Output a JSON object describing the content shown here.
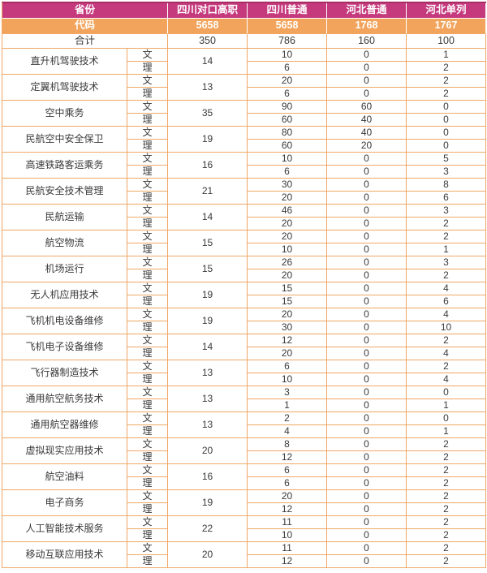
{
  "colors": {
    "header_pink": "#c43a7d",
    "header_orange": "#f2a45c",
    "border_orange": "#f0a767",
    "table_top_edge": "#a92c62",
    "header_text": "#ffffff",
    "body_text": "#3a3a3a"
  },
  "table": {
    "header": {
      "province_label": "省份",
      "code_label": "代码",
      "columns": [
        "四川对口高职",
        "四川普通",
        "河北普通",
        "河北单列"
      ],
      "codes": [
        "5658",
        "5658",
        "1768",
        "1767"
      ]
    },
    "total_row": {
      "label": "合计",
      "values": [
        "350",
        "786",
        "160",
        "100"
      ]
    },
    "track_labels": {
      "arts": "文",
      "science": "理"
    },
    "majors": [
      {
        "name": "直升机驾驶技术",
        "sichuan_duikou": "14",
        "arts": [
          "10",
          "0",
          "1"
        ],
        "science": [
          "6",
          "0",
          "2"
        ]
      },
      {
        "name": "定翼机驾驶技术",
        "sichuan_duikou": "13",
        "arts": [
          "20",
          "0",
          "2"
        ],
        "science": [
          "6",
          "0",
          "2"
        ]
      },
      {
        "name": "空中乘务",
        "sichuan_duikou": "35",
        "arts": [
          "90",
          "60",
          "0"
        ],
        "science": [
          "60",
          "40",
          "0"
        ]
      },
      {
        "name": "民航空中安全保卫",
        "sichuan_duikou": "19",
        "arts": [
          "80",
          "40",
          "0"
        ],
        "science": [
          "60",
          "20",
          "0"
        ]
      },
      {
        "name": "高速铁路客运乘务",
        "sichuan_duikou": "16",
        "arts": [
          "10",
          "0",
          "5"
        ],
        "science": [
          "6",
          "0",
          "3"
        ]
      },
      {
        "name": "民航安全技术管理",
        "sichuan_duikou": "21",
        "arts": [
          "30",
          "0",
          "8"
        ],
        "science": [
          "20",
          "0",
          "6"
        ]
      },
      {
        "name": "民航运输",
        "sichuan_duikou": "14",
        "arts": [
          "46",
          "0",
          "3"
        ],
        "science": [
          "20",
          "0",
          "2"
        ]
      },
      {
        "name": "航空物流",
        "sichuan_duikou": "15",
        "arts": [
          "20",
          "0",
          "2"
        ],
        "science": [
          "10",
          "0",
          "1"
        ]
      },
      {
        "name": "机场运行",
        "sichuan_duikou": "15",
        "arts": [
          "26",
          "0",
          "3"
        ],
        "science": [
          "20",
          "0",
          "2"
        ]
      },
      {
        "name": "无人机应用技术",
        "sichuan_duikou": "19",
        "arts": [
          "15",
          "0",
          "4"
        ],
        "science": [
          "15",
          "0",
          "6"
        ]
      },
      {
        "name": "飞机机电设备维修",
        "sichuan_duikou": "19",
        "arts": [
          "20",
          "0",
          "4"
        ],
        "science": [
          "30",
          "0",
          "10"
        ]
      },
      {
        "name": "飞机电子设备维修",
        "sichuan_duikou": "14",
        "arts": [
          "12",
          "0",
          "2"
        ],
        "science": [
          "20",
          "0",
          "4"
        ]
      },
      {
        "name": "飞行器制造技术",
        "sichuan_duikou": "13",
        "arts": [
          "6",
          "0",
          "2"
        ],
        "science": [
          "10",
          "0",
          "4"
        ]
      },
      {
        "name": "通用航空航务技术",
        "sichuan_duikou": "13",
        "arts": [
          "3",
          "0",
          "0"
        ],
        "science": [
          "1",
          "0",
          "1"
        ]
      },
      {
        "name": "通用航空器维修",
        "sichuan_duikou": "13",
        "arts": [
          "2",
          "0",
          "0"
        ],
        "science": [
          "4",
          "0",
          "1"
        ]
      },
      {
        "name": "虚拟现实应用技术",
        "sichuan_duikou": "20",
        "arts": [
          "8",
          "0",
          "2"
        ],
        "science": [
          "12",
          "0",
          "2"
        ]
      },
      {
        "name": "航空油料",
        "sichuan_duikou": "16",
        "arts": [
          "6",
          "0",
          "2"
        ],
        "science": [
          "6",
          "0",
          "2"
        ]
      },
      {
        "name": "电子商务",
        "sichuan_duikou": "19",
        "arts": [
          "20",
          "0",
          "2"
        ],
        "science": [
          "12",
          "0",
          "2"
        ]
      },
      {
        "name": "人工智能技术服务",
        "sichuan_duikou": "22",
        "arts": [
          "11",
          "0",
          "2"
        ],
        "science": [
          "10",
          "0",
          "2"
        ]
      },
      {
        "name": "移动互联应用技术",
        "sichuan_duikou": "20",
        "arts": [
          "11",
          "0",
          "2"
        ],
        "science": [
          "12",
          "0",
          "2"
        ]
      }
    ]
  }
}
